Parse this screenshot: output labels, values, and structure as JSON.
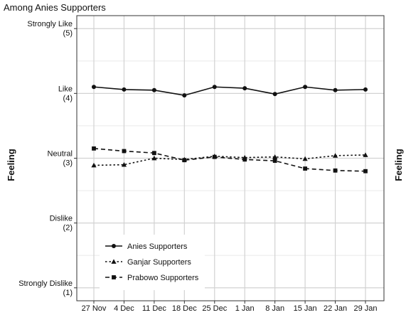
{
  "chart_data": {
    "type": "line",
    "title": "Among Anies Supporters",
    "ylabel": "Feeling",
    "ylabel_right": "Feeling",
    "x": [
      "27 Nov",
      "4 Dec",
      "11 Dec",
      "18 Dec",
      "25 Dec",
      "1 Jan",
      "8 Jan",
      "15 Jan",
      "22 Jan",
      "29 Jan"
    ],
    "ylim": [
      0.8,
      5.2
    ],
    "yticks": [
      {
        "value": 5,
        "label": "Strongly Like",
        "sub": "(5)"
      },
      {
        "value": 4,
        "label": "Like",
        "sub": "(4)"
      },
      {
        "value": 3,
        "label": "Neutral",
        "sub": "(3)"
      },
      {
        "value": 2,
        "label": "Dislike",
        "sub": "(2)"
      },
      {
        "value": 1,
        "label": "Strongly Dislike",
        "sub": "(1)"
      }
    ],
    "grid": true,
    "legend_position": "bottom-left",
    "series": [
      {
        "name": "Anies Supporters",
        "marker": "circle",
        "dash": "solid",
        "values": [
          4.1,
          4.06,
          4.05,
          3.97,
          4.1,
          4.08,
          3.99,
          4.1,
          4.05,
          4.06
        ]
      },
      {
        "name": "Ganjar Supporters",
        "marker": "triangle",
        "dash": "dotted",
        "values": [
          2.89,
          2.9,
          3.0,
          2.98,
          3.03,
          3.01,
          3.02,
          2.99,
          3.04,
          3.05
        ]
      },
      {
        "name": "Prabowo Supporters",
        "marker": "square",
        "dash": "dashed",
        "values": [
          3.15,
          3.11,
          3.08,
          2.97,
          3.02,
          2.98,
          2.96,
          2.84,
          2.81,
          2.8
        ]
      }
    ]
  }
}
